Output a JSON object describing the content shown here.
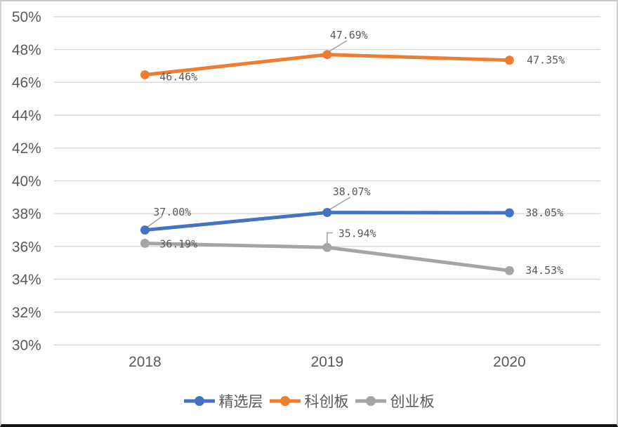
{
  "chart_data": {
    "type": "line",
    "title": "",
    "categories": [
      "2018",
      "2019",
      "2020"
    ],
    "y_axis": {
      "min": 30,
      "max": 50,
      "step": 2,
      "unit": "%",
      "tick_labels": [
        "30%",
        "32%",
        "34%",
        "36%",
        "38%",
        "40%",
        "42%",
        "44%",
        "46%",
        "48%",
        "50%"
      ]
    },
    "grid": true,
    "legend_position": "bottom",
    "series": [
      {
        "name": "精选层",
        "color": "#4472C4",
        "values": [
          37.0,
          38.07,
          38.05
        ],
        "value_labels": [
          "37.00%",
          "38.07%",
          "38.05%"
        ],
        "label_offsets": [
          [
            39,
            -26
          ],
          [
            35,
            -30
          ],
          [
            50,
            0
          ]
        ],
        "leaders": [
          [
            [
              3,
              -4
            ],
            [
              25,
              -20
            ]
          ],
          [
            [
              3,
              -4
            ],
            [
              33,
              -22
            ]
          ],
          []
        ]
      },
      {
        "name": "科创板",
        "color": "#ED7D31",
        "values": [
          46.46,
          47.69,
          47.35
        ],
        "value_labels": [
          "46.46%",
          "47.69%",
          "47.35%"
        ],
        "label_offsets": [
          [
            48,
            3
          ],
          [
            31,
            -28
          ],
          [
            52,
            0
          ]
        ],
        "leaders": [
          [],
          [
            [
              2,
              -4
            ],
            [
              28,
              -20
            ]
          ],
          []
        ]
      },
      {
        "name": "创业板",
        "color": "#A5A5A5",
        "values": [
          36.19,
          35.94,
          34.53
        ],
        "value_labels": [
          "36.19%",
          "35.94%",
          "34.53%"
        ],
        "label_offsets": [
          [
            48,
            1
          ],
          [
            43,
            -20
          ],
          [
            50,
            0
          ]
        ],
        "leaders": [
          [],
          [
            [
              0,
              -5
            ],
            [
              0,
              -21
            ],
            [
              8,
              -21
            ]
          ],
          []
        ]
      }
    ]
  },
  "colors": {
    "grid": "#d9d9d9",
    "axis_text": "#595959",
    "value_text": "#595959",
    "leader": "#a6a6a6",
    "background": "#ffffff",
    "border": "#c9c9c9",
    "border_bottom": "#141414"
  }
}
